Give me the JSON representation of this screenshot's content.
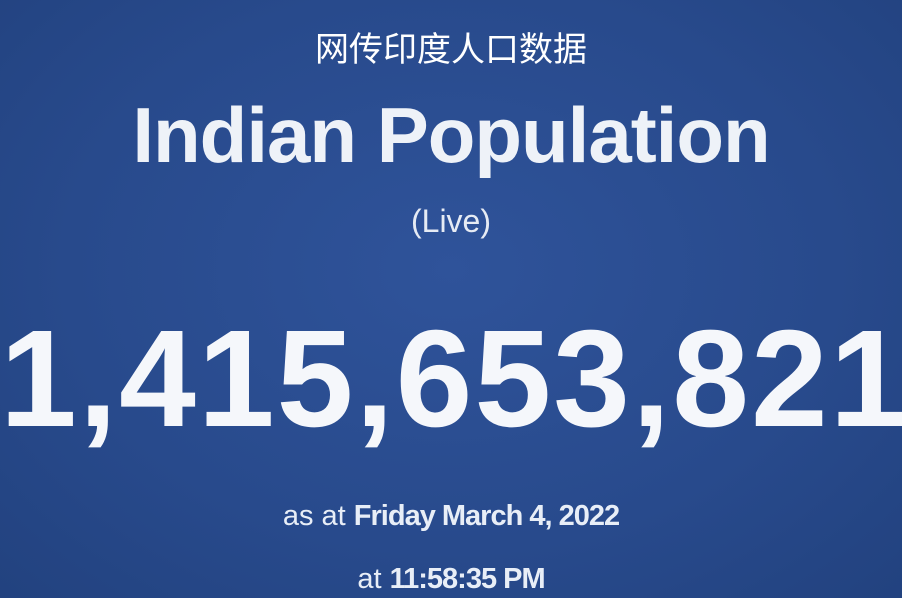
{
  "caption": "网传印度人口数据",
  "title": "Indian Population",
  "subtitle": "(Live)",
  "population": "1,415,653,821",
  "date_prefix": "as at",
  "date": "Friday March 4, 2022",
  "time_prefix": "at",
  "time": "11:58:35 PM",
  "colors": {
    "background": "#2a4b8f",
    "text": "#f2f5fa"
  }
}
